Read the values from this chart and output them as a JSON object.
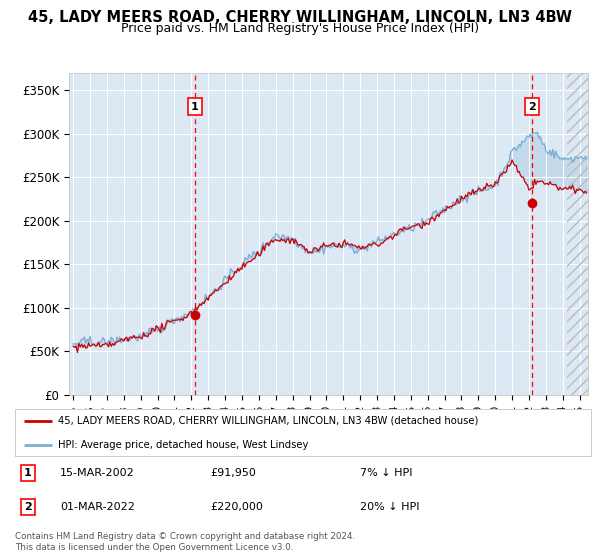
{
  "title": "45, LADY MEERS ROAD, CHERRY WILLINGHAM, LINCOLN, LN3 4BW",
  "subtitle": "Price paid vs. HM Land Registry's House Price Index (HPI)",
  "ylabel_ticks": [
    "£0",
    "£50K",
    "£100K",
    "£150K",
    "£200K",
    "£250K",
    "£300K",
    "£350K"
  ],
  "ytick_values": [
    0,
    50000,
    100000,
    150000,
    200000,
    250000,
    300000,
    350000
  ],
  "ylim": [
    0,
    370000
  ],
  "xlim_start": 1994.75,
  "xlim_end": 2025.5,
  "background_color": "#dce9f5",
  "hpi_line_color": "#7aafd4",
  "price_line_color": "#cc0000",
  "marker1_x": 2002.2,
  "marker1_y": 91950,
  "marker2_x": 2022.17,
  "marker2_y": 220000,
  "legend_line1": "45, LADY MEERS ROAD, CHERRY WILLINGHAM, LINCOLN, LN3 4BW (detached house)",
  "legend_line2": "HPI: Average price, detached house, West Lindsey",
  "marker1_date": "15-MAR-2002",
  "marker1_price": "£91,950",
  "marker1_note": "7% ↓ HPI",
  "marker2_date": "01-MAR-2022",
  "marker2_price": "£220,000",
  "marker2_note": "20% ↓ HPI",
  "footer": "Contains HM Land Registry data © Crown copyright and database right 2024.\nThis data is licensed under the Open Government Licence v3.0.",
  "hatch_start": 2024.25,
  "title_fontsize": 10.5,
  "subtitle_fontsize": 9
}
